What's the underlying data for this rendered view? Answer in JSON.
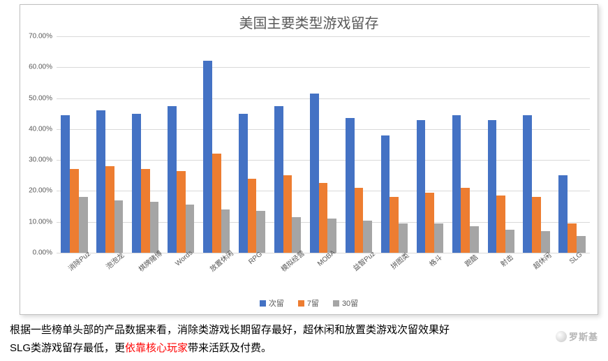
{
  "chart": {
    "type": "bar",
    "title": "美国主要类型游戏留存",
    "title_fontsize": 20,
    "title_color": "#595959",
    "background_color": "#ffffff",
    "border_color": "#bfbfbf",
    "grid_color": "#d9d9d9",
    "tick_label_fontsize": 10,
    "tick_label_color": "#595959",
    "ylim": [
      0,
      70
    ],
    "ytick_step": 10,
    "ytick_format": "percent_2dec",
    "y_ticks": [
      "0.00%",
      "10.00%",
      "20.00%",
      "30.00%",
      "40.00%",
      "50.00%",
      "60.00%",
      "70.00%"
    ],
    "x_label_rotation_deg": -40,
    "group_gap": 0.25,
    "bar_gap": 0.0,
    "categories": [
      "消除Puz",
      "泡泡龙",
      "棋牌赌博",
      "Words",
      "放置休闲",
      "RPG",
      "模拟经营",
      "MOBA",
      "益智Puz",
      "拼图类",
      "格斗",
      "跑酷",
      "射击",
      "超休闲",
      "SLG"
    ],
    "series": [
      {
        "name": "次留",
        "color": "#4472c4",
        "values": [
          44.5,
          46.0,
          45.0,
          47.5,
          62.0,
          45.0,
          47.5,
          51.5,
          43.5,
          38.0,
          43.0,
          44.5,
          43.0,
          44.5,
          25.0
        ]
      },
      {
        "name": "7留",
        "color": "#ed7d31",
        "values": [
          27.0,
          28.0,
          27.0,
          26.5,
          32.0,
          24.0,
          25.0,
          22.5,
          21.0,
          18.0,
          19.5,
          21.0,
          18.5,
          18.0,
          9.5
        ]
      },
      {
        "name": "30留",
        "color": "#a5a5a5",
        "values": [
          18.0,
          17.0,
          16.5,
          15.5,
          14.0,
          13.5,
          11.5,
          11.0,
          10.5,
          9.5,
          9.5,
          8.5,
          7.5,
          7.0,
          5.5
        ]
      }
    ],
    "legend": {
      "position": "bottom",
      "swatch_size": 9,
      "fontsize": 11
    }
  },
  "caption": {
    "fontsize": 15,
    "color": "#000000",
    "highlight_color": "#ff0000",
    "line1_a": "根据一些榜单头部的产品数据来看，消除类游戏长期留存最好，超休闲和放置类游戏次留效果好",
    "line2_a": "SLG类游戏留存最低，更",
    "line2_b_red": "依靠核心玩家",
    "line2_c": "带来活跃及付费。"
  },
  "watermark": {
    "text": "罗斯基",
    "color": "rgba(120,120,120,0.55)"
  }
}
